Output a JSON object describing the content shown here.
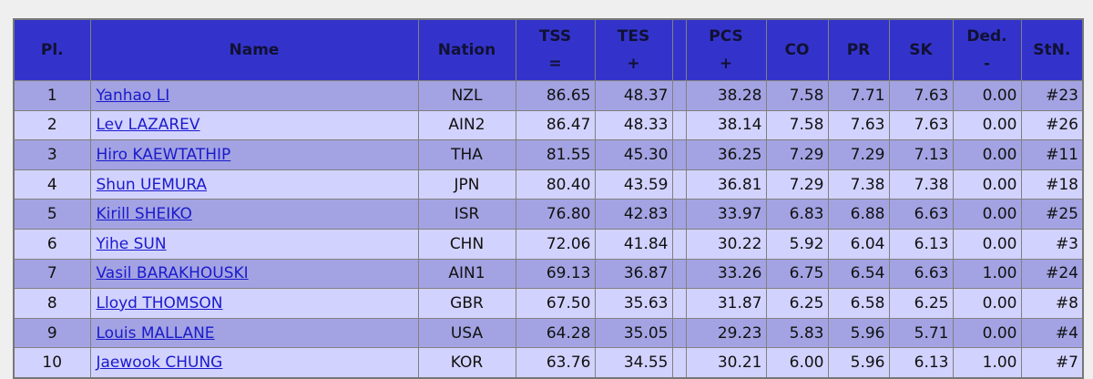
{
  "table": {
    "header": [
      {
        "label": "Pl."
      },
      {
        "label": "Name"
      },
      {
        "label": "Nation"
      },
      {
        "label": "TSS",
        "sub": "="
      },
      {
        "label": "TES",
        "sub": "+"
      },
      {
        "label": "PCS",
        "sub": "+"
      },
      {
        "label": "CO"
      },
      {
        "label": "PR"
      },
      {
        "label": "SK"
      },
      {
        "label": "Ded.",
        "sub": "-"
      },
      {
        "label": "StN."
      }
    ],
    "rows": [
      [
        "1",
        "Yanhao LI",
        "NZL",
        "86.65",
        "48.37",
        "38.28",
        "7.58",
        "7.71",
        "7.63",
        "0.00",
        "#23"
      ],
      [
        "2",
        "Lev LAZAREV",
        "AIN2",
        "86.47",
        "48.33",
        "38.14",
        "7.58",
        "7.63",
        "7.63",
        "0.00",
        "#26"
      ],
      [
        "3",
        "Hiro KAEWTATHIP",
        "THA",
        "81.55",
        "45.30",
        "36.25",
        "7.29",
        "7.29",
        "7.13",
        "0.00",
        "#11"
      ],
      [
        "4",
        "Shun UEMURA",
        "JPN",
        "80.40",
        "43.59",
        "36.81",
        "7.29",
        "7.38",
        "7.38",
        "0.00",
        "#18"
      ],
      [
        "5",
        "Kirill SHEIKO",
        "ISR",
        "76.80",
        "42.83",
        "33.97",
        "6.83",
        "6.88",
        "6.63",
        "0.00",
        "#25"
      ],
      [
        "6",
        "Yihe SUN",
        "CHN",
        "72.06",
        "41.84",
        "30.22",
        "5.92",
        "6.04",
        "6.13",
        "0.00",
        "#3"
      ],
      [
        "7",
        "Vasil BARAKHOUSKI",
        "AIN1",
        "69.13",
        "36.87",
        "33.26",
        "6.75",
        "6.54",
        "6.63",
        "1.00",
        "#24"
      ],
      [
        "8",
        "Lloyd THOMSON",
        "GBR",
        "67.50",
        "35.63",
        "31.87",
        "6.25",
        "6.58",
        "6.25",
        "0.00",
        "#8"
      ],
      [
        "9",
        "Louis MALLANE",
        "USA",
        "64.28",
        "35.05",
        "29.23",
        "5.83",
        "5.96",
        "5.71",
        "0.00",
        "#4"
      ],
      [
        "10",
        "Jaewook CHUNG",
        "KOR",
        "63.76",
        "34.55",
        "30.21",
        "6.00",
        "5.96",
        "6.13",
        "1.00",
        "#7"
      ]
    ]
  }
}
